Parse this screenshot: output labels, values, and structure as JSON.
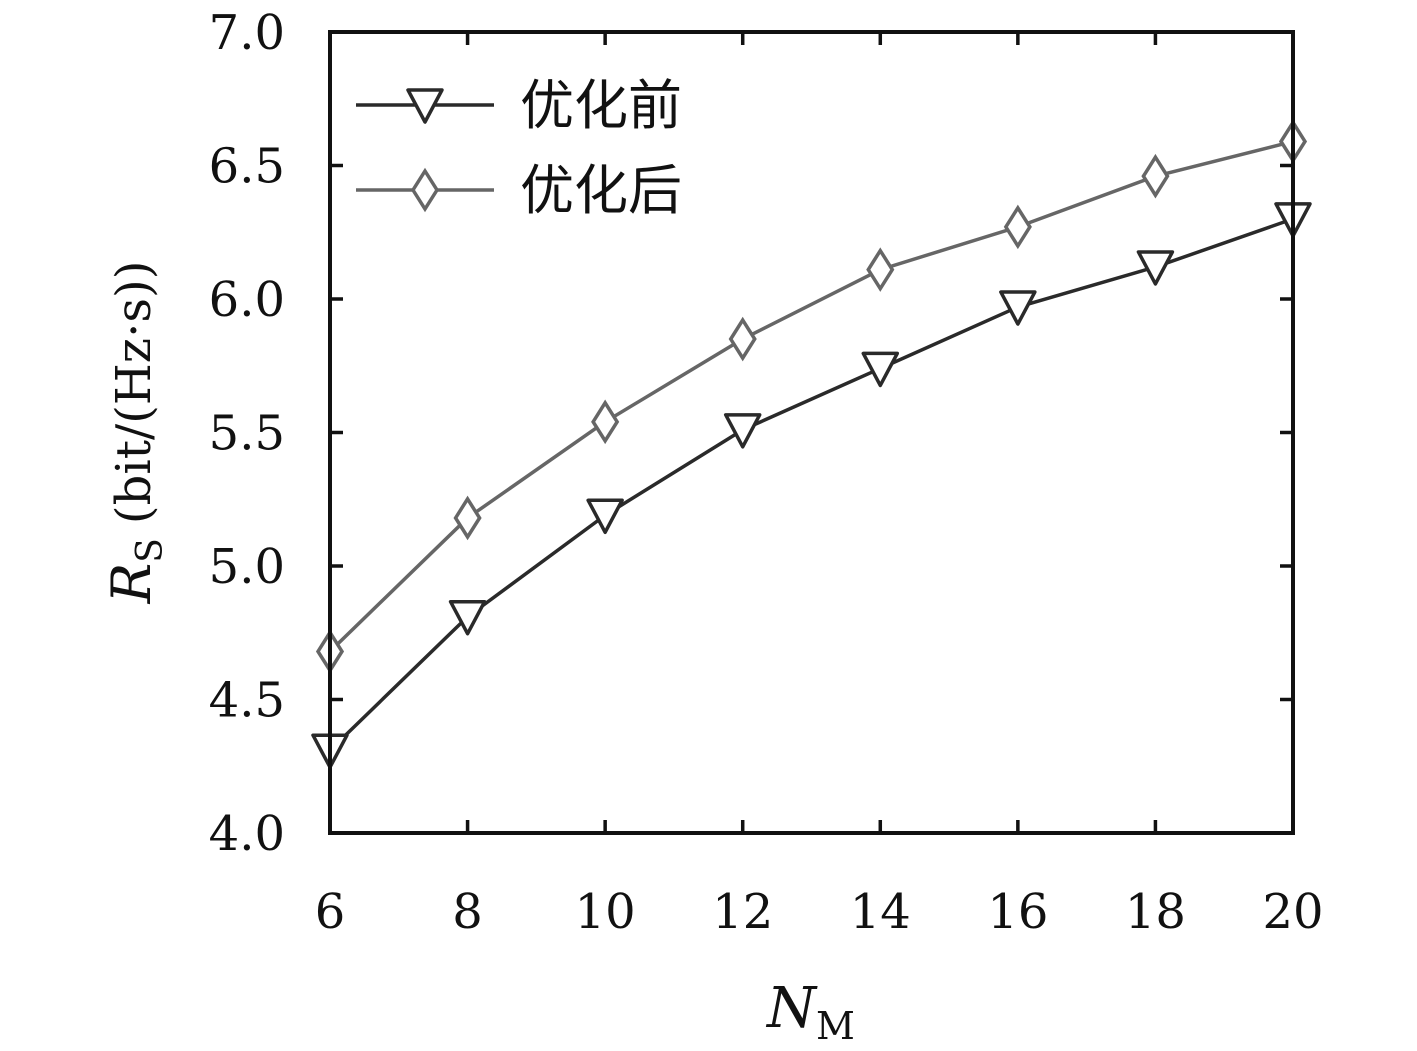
{
  "chart_data": {
    "type": "line",
    "x": [
      6,
      8,
      10,
      12,
      14,
      16,
      18,
      20
    ],
    "xlim": [
      6,
      20
    ],
    "ylim": [
      4.0,
      7.0
    ],
    "xticks": [
      "6",
      "8",
      "10",
      "12",
      "14",
      "16",
      "18",
      "20"
    ],
    "yticks": [
      "4.0",
      "4.5",
      "5.0",
      "5.5",
      "6.0",
      "6.5",
      "7.0"
    ],
    "xlabel": {
      "main": "N",
      "sub": "M"
    },
    "ylabel": {
      "main": "R",
      "sub": "S",
      "unit": "(bit/(Hz·s))"
    },
    "legend_position": "top-left",
    "grid": false,
    "series": [
      {
        "name": "优化前",
        "marker": "triangle-down",
        "color": "#2a2a2a",
        "values": [
          4.31,
          4.81,
          5.19,
          5.51,
          5.74,
          5.97,
          6.12,
          6.3
        ]
      },
      {
        "name": "优化后",
        "marker": "diamond",
        "color": "#666666",
        "values": [
          4.68,
          5.18,
          5.54,
          5.85,
          6.11,
          6.27,
          6.46,
          6.59
        ]
      }
    ]
  }
}
